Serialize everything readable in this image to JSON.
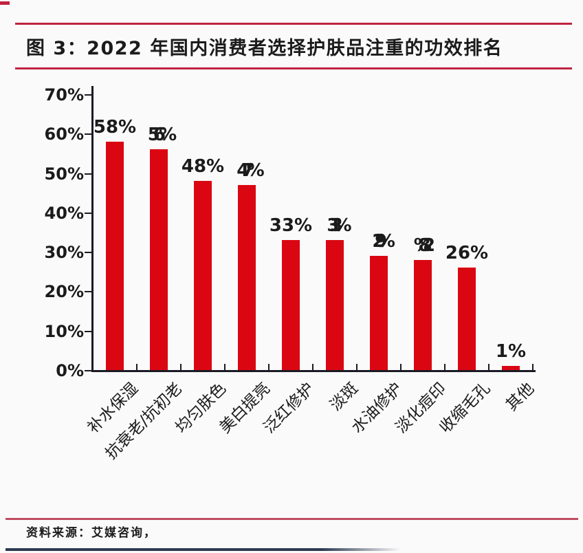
{
  "page": {
    "title": "图 3：2022 年国内消费者选择护肤品注重的功效排名",
    "source_label": "资料来源：艾媒咨询，"
  },
  "colors": {
    "bar": "#da0712",
    "title_rule": "#bf2440",
    "footer_rule": "#c04b60",
    "bottom_line": "#2b3950",
    "axis": "#1a1a24",
    "text": "#1b1b1b",
    "background": "#fbfafa"
  },
  "chart_data": {
    "type": "bar",
    "title": "2022 年国内消费者选择护肤品注重的功效排名",
    "categories": [
      "补水保湿",
      "抗衰老/抗初老",
      "均匀肤色",
      "美白提亮",
      "泛红修护",
      "淡斑",
      "水油修护",
      "淡化痘印",
      "收缩毛孔",
      "其他"
    ],
    "values": [
      58,
      56,
      48,
      47,
      33,
      33,
      29,
      28,
      26,
      1
    ],
    "bar_labels": [
      "58%",
      "56%",
      "48%",
      "47%",
      "33%",
      "33%",
      "29%",
      "28%",
      "26%",
      "1%"
    ],
    "xlabel": "",
    "ylabel": "",
    "ylim": [
      0,
      70
    ],
    "yticks": [
      0,
      10,
      20,
      30,
      40,
      50,
      60,
      70
    ],
    "ytick_labels": [
      "0%",
      "10%",
      "20%",
      "30%",
      "40%",
      "50%",
      "60%",
      "70%"
    ],
    "grid": false,
    "legend": null,
    "bar_color": "#da0712",
    "label_squeeze_em": [
      0,
      -0.38,
      0,
      -0.42,
      0,
      -0.5,
      -0.55,
      -0.95,
      0,
      0
    ]
  }
}
